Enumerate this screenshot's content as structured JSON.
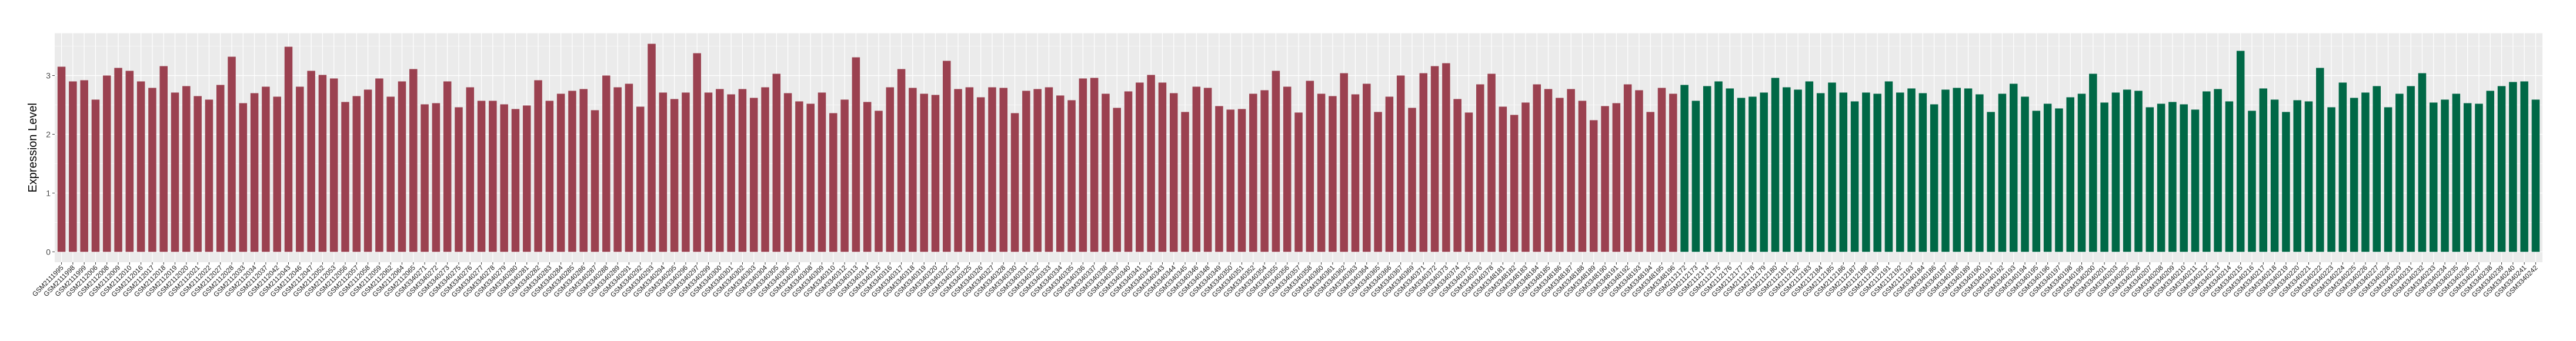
{
  "chart_data": {
    "type": "bar",
    "title": "",
    "xlabel": "",
    "ylabel": "Expression Level",
    "ylim": [
      -0.177,
      3.72
    ],
    "yticks": [
      0,
      1,
      2,
      3
    ],
    "grid": true,
    "legend": "none",
    "palette": [
      "#9B4150",
      "#006846"
    ],
    "panel_background": "#EBEBEB",
    "categories": [
      "GSM2111995",
      "GSM2111998",
      "GSM2111999",
      "GSM2112006",
      "GSM2112008",
      "GSM2112009",
      "GSM2112010",
      "GSM2112016",
      "GSM2112017",
      "GSM2112018",
      "GSM2112019",
      "GSM2112020",
      "GSM2112021",
      "GSM2112022",
      "GSM2112027",
      "GSM2112028",
      "GSM2112033",
      "GSM2112034",
      "GSM2112037",
      "GSM2112042",
      "GSM2112043",
      "GSM2112046",
      "GSM2112047",
      "GSM2112052",
      "GSM2112053",
      "GSM2112056",
      "GSM2112057",
      "GSM2112058",
      "GSM2112059",
      "GSM2112062",
      "GSM2112064",
      "GSM2112065",
      "GSM3340271",
      "GSM3340272",
      "GSM3340273",
      "GSM3340275",
      "GSM3340276",
      "GSM3340277",
      "GSM3340278",
      "GSM3340279",
      "GSM3340280",
      "GSM3340281",
      "GSM3340282",
      "GSM3340283",
      "GSM3340284",
      "GSM3340285",
      "GSM3340286",
      "GSM3340287",
      "GSM3340288",
      "GSM3340289",
      "GSM3340291",
      "GSM3340292",
      "GSM3340293",
      "GSM3340294",
      "GSM3340295",
      "GSM3340296",
      "GSM3340297",
      "GSM3340299",
      "GSM3340300",
      "GSM3340301",
      "GSM3340302",
      "GSM3340303",
      "GSM3340304",
      "GSM3340305",
      "GSM3340306",
      "GSM3340307",
      "GSM3340308",
      "GSM3340309",
      "GSM3340310",
      "GSM3340312",
      "GSM3340313",
      "GSM3340314",
      "GSM3340315",
      "GSM3340316",
      "GSM3340317",
      "GSM3340318",
      "GSM3340319",
      "GSM3340320",
      "GSM3340322",
      "GSM3340323",
      "GSM3340325",
      "GSM3340326",
      "GSM3340327",
      "GSM3340328",
      "GSM3340330",
      "GSM3340331",
      "GSM3340332",
      "GSM3340333",
      "GSM3340334",
      "GSM3340335",
      "GSM3340336",
      "GSM3340337",
      "GSM3340338",
      "GSM3340339",
      "GSM3340340",
      "GSM3340341",
      "GSM3340342",
      "GSM3340343",
      "GSM3340344",
      "GSM3340345",
      "GSM3340346",
      "GSM3340348",
      "GSM3340349",
      "GSM3340350",
      "GSM3340351",
      "GSM3340352",
      "GSM3340354",
      "GSM3340355",
      "GSM3340356",
      "GSM3340357",
      "GSM3340358",
      "GSM3340360",
      "GSM3340361",
      "GSM3340362",
      "GSM3340363",
      "GSM3340364",
      "GSM3340365",
      "GSM3340366",
      "GSM3340367",
      "GSM3340369",
      "GSM3340371",
      "GSM3340372",
      "GSM3340373",
      "GSM3340374",
      "GSM3340375",
      "GSM3340376",
      "GSM3340378",
      "GSM3348181",
      "GSM3348182",
      "GSM3348183",
      "GSM3348184",
      "GSM3348185",
      "GSM3348186",
      "GSM3348187",
      "GSM3348188",
      "GSM3348189",
      "GSM3348190",
      "GSM3348191",
      "GSM3348192",
      "GSM3348193",
      "GSM3348194",
      "GSM3348195",
      "GSM3348196",
      "GSM2112172",
      "GSM2112173",
      "GSM2112174",
      "GSM2112175",
      "GSM2112176",
      "GSM2112177",
      "GSM2112178",
      "GSM2112179",
      "GSM2112180",
      "GSM2112181",
      "GSM2112182",
      "GSM2112183",
      "GSM2112184",
      "GSM2112185",
      "GSM2112186",
      "GSM2112187",
      "GSM2112188",
      "GSM2112189",
      "GSM2112191",
      "GSM2112192",
      "GSM2112193",
      "GSM3340184",
      "GSM3340186",
      "GSM3340187",
      "GSM3340188",
      "GSM3340189",
      "GSM3340190",
      "GSM3340191",
      "GSM3340192",
      "GSM3340193",
      "GSM3340194",
      "GSM3340195",
      "GSM3340196",
      "GSM3340197",
      "GSM3340198",
      "GSM3340199",
      "GSM3340200",
      "GSM3340201",
      "GSM3340203",
      "GSM3340205",
      "GSM3340206",
      "GSM3340207",
      "GSM3340208",
      "GSM3340209",
      "GSM3340210",
      "GSM3340211",
      "GSM3340212",
      "GSM3340213",
      "GSM3340214",
      "GSM3340215",
      "GSM3340216",
      "GSM3340217",
      "GSM3340218",
      "GSM3340219",
      "GSM3340220",
      "GSM3340221",
      "GSM3340222",
      "GSM3340223",
      "GSM3340224",
      "GSM3340225",
      "GSM3340226",
      "GSM3340227",
      "GSM3340228",
      "GSM3340229",
      "GSM3340231",
      "GSM3340232",
      "GSM3340233",
      "GSM3340234",
      "GSM3340235",
      "GSM3340236",
      "GSM3340237",
      "GSM3340238",
      "GSM3340239",
      "GSM3340240",
      "GSM3340241",
      "GSM3340242"
    ],
    "values": [
      3.15,
      2.9,
      2.92,
      2.59,
      3.0,
      3.13,
      3.08,
      2.9,
      2.79,
      3.16,
      2.71,
      2.82,
      2.65,
      2.59,
      2.84,
      3.32,
      2.53,
      2.7,
      2.81,
      2.64,
      3.49,
      2.81,
      3.08,
      3.01,
      2.95,
      2.55,
      2.65,
      2.76,
      2.95,
      2.64,
      2.9,
      3.11,
      2.51,
      2.53,
      2.9,
      2.46,
      2.8,
      2.57,
      2.57,
      2.51,
      2.43,
      2.49,
      2.92,
      2.57,
      2.69,
      2.74,
      2.77,
      2.41,
      3.0,
      2.8,
      2.86,
      2.47,
      3.54,
      2.71,
      2.6,
      2.71,
      3.38,
      2.71,
      2.77,
      2.68,
      2.77,
      2.62,
      2.8,
      3.03,
      2.7,
      2.56,
      2.52,
      2.71,
      2.36,
      2.59,
      3.31,
      2.55,
      2.4,
      2.8,
      3.11,
      2.79,
      2.69,
      2.67,
      3.25,
      2.77,
      2.8,
      2.63,
      2.8,
      2.79,
      2.36,
      2.74,
      2.77,
      2.8,
      2.66,
      2.58,
      2.95,
      2.96,
      2.69,
      2.45,
      2.73,
      2.88,
      3.01,
      2.88,
      2.7,
      2.38,
      2.81,
      2.79,
      2.48,
      2.42,
      2.43,
      2.69,
      2.75,
      3.08,
      2.81,
      2.37,
      2.91,
      2.69,
      2.65,
      3.04,
      2.68,
      2.86,
      2.38,
      2.64,
      3.0,
      2.45,
      3.04,
      3.16,
      3.21,
      2.6,
      2.37,
      2.85,
      3.03,
      2.47,
      2.33,
      2.54,
      2.85,
      2.77,
      2.62,
      2.77,
      2.57,
      2.24,
      2.48,
      2.53,
      2.85,
      2.75,
      2.38,
      2.79,
      2.69,
      2.84,
      2.57,
      2.82,
      2.9,
      2.78,
      2.62,
      2.64,
      2.71,
      2.96,
      2.8,
      2.76,
      2.9,
      2.7,
      2.88,
      2.71,
      2.56,
      2.71,
      2.69,
      2.9,
      2.71,
      2.78,
      2.7,
      2.51,
      2.76,
      2.79,
      2.78,
      2.68,
      2.38,
      2.69,
      2.86,
      2.64,
      2.4,
      2.52,
      2.44,
      2.63,
      2.69,
      3.03,
      2.54,
      2.71,
      2.76,
      2.74,
      2.46,
      2.52,
      2.55,
      2.51,
      2.42,
      2.73,
      2.77,
      2.56,
      3.42,
      2.4,
      2.78,
      2.59,
      2.38,
      2.58,
      2.56,
      3.13,
      2.46,
      2.88,
      2.62,
      2.71,
      2.82,
      2.46,
      2.69,
      2.82,
      3.04,
      2.54,
      2.59,
      2.69,
      2.53,
      2.52,
      2.74,
      2.82,
      2.89,
      2.9,
      2.59
    ],
    "groups_count": [
      143,
      76
    ]
  }
}
